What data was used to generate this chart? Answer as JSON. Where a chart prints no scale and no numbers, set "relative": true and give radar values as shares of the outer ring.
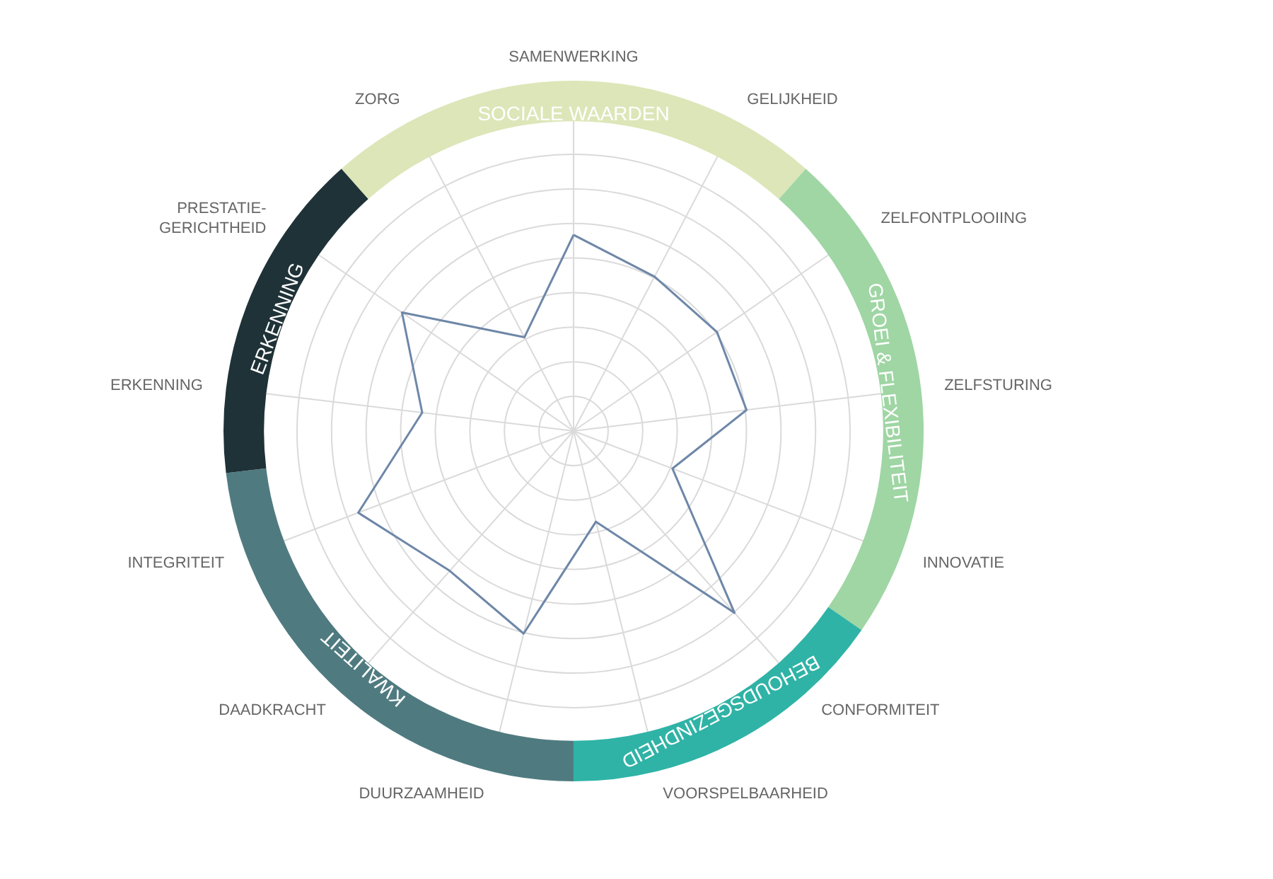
{
  "chart_data": [
    {
      "type": "radar",
      "relative": true,
      "grid": true,
      "categories": [
        "SAMENWERKING",
        "GELIJKHEID",
        "ZELFONTPLOOIING",
        "ZELFSTURING",
        "INNOVATIE",
        "CONFORMITEIT",
        "VOORSPELBAARHEID",
        "DUURZAAMHEID",
        "DAADKRACHT",
        "INTEGRITEIT",
        "ERKENNING",
        "PRESTATIE-\nGERICHTHEID",
        "ZORG"
      ],
      "series": [
        {
          "color": "#6e87a8",
          "values": [
            0.63,
            0.56,
            0.56,
            0.56,
            0.34,
            0.78,
            0.3,
            0.67,
            0.6,
            0.74,
            0.49,
            0.67,
            0.34
          ]
        }
      ]
    },
    {
      "type": "donut",
      "categories": [
        "SOCIALE WAARDEN",
        "GROEI & FLEXIBILITEIT",
        "BEHOUDSGEZINDHEID",
        "KWALITEIT",
        "ERKENNING"
      ],
      "values": [
        23.08,
        23.08,
        15.38,
        23.08,
        15.38
      ],
      "colors": [
        "#dce6b8",
        "#9fd6a4",
        "#2fb3a6",
        "#4f7b80",
        "#1f3238"
      ]
    }
  ]
}
